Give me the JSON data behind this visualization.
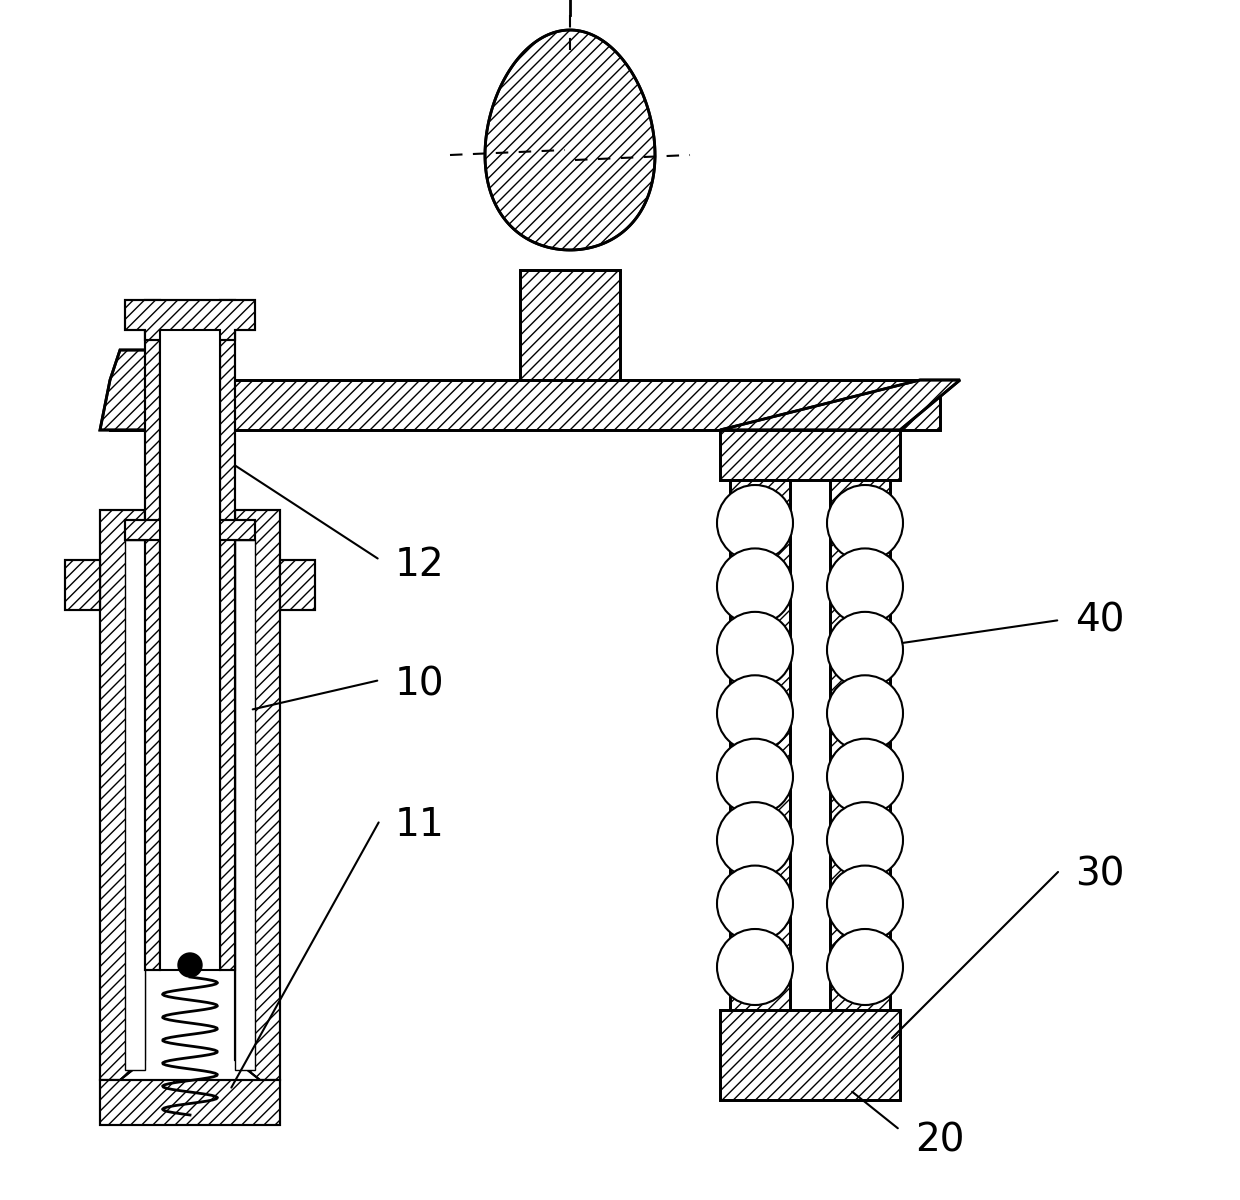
{
  "bg_color": "#ffffff",
  "hatch_color": "#000000",
  "line_color": "#000000",
  "label_12": "12",
  "label_10": "10",
  "label_11": "11",
  "label_40": "40",
  "label_30": "30",
  "label_20": "20",
  "hatch_pattern": "///",
  "fig_width": 12.4,
  "fig_height": 12.0
}
